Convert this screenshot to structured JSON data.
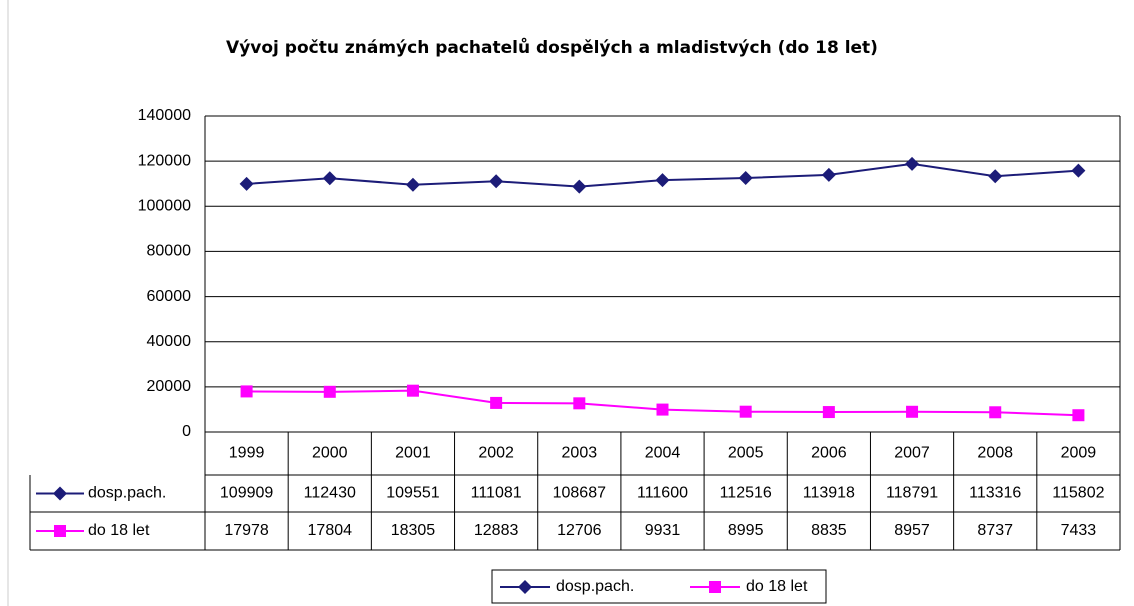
{
  "chart_data": {
    "type": "line",
    "title": "Vývoj počtu známých pachatelů dospělých a mladistvých (do 18 let)",
    "categories": [
      "1999",
      "2000",
      "2001",
      "2002",
      "2003",
      "2004",
      "2005",
      "2006",
      "2007",
      "2008",
      "2009"
    ],
    "series": [
      {
        "name": "dosp.pach.",
        "color": "#1c1c78",
        "marker": "diamond",
        "values": [
          109909,
          112430,
          109551,
          111081,
          108687,
          111600,
          112516,
          113918,
          118791,
          113316,
          115802
        ]
      },
      {
        "name": "do 18 let",
        "color": "#ff00ff",
        "marker": "square",
        "values": [
          17978,
          17804,
          18305,
          12883,
          12706,
          9931,
          8995,
          8835,
          8957,
          8737,
          7433
        ]
      }
    ],
    "ylim": [
      0,
      140000
    ],
    "yticks": [
      0,
      20000,
      40000,
      60000,
      80000,
      100000,
      120000,
      140000
    ],
    "grid": true
  }
}
